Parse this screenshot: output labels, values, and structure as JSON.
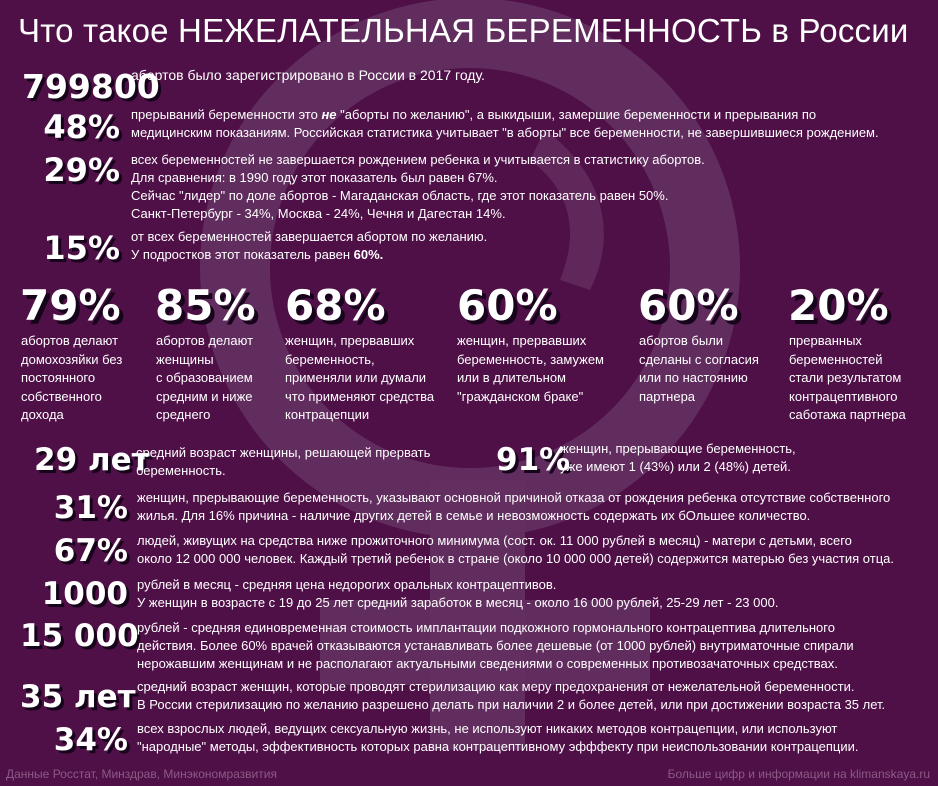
{
  "title": "Что такое НЕЖЕЛАТЕЛЬНАЯ БЕРЕМЕННОСТЬ в России",
  "rows_top": [
    {
      "num": "799800",
      "lines": [
        "абортов было зарегистрировано в России в 2017 году."
      ]
    },
    {
      "num": "48%",
      "line1_a": "прерываний беременности это ",
      "line1_em": "не",
      "line1_b": " \"аборты по желанию\", а выкидыши, замершие беременности и прерывания по",
      "line2": "медицинским показаниям. Российская статистика учитывает \"в аборты\" все беременности, не завершившиеся рождением."
    },
    {
      "num": "29%",
      "lines": [
        "всех беременностей не завершается рождением ребенка и учитывается в статистику абортов.",
        "Для сравнения: в 1990 году этот показатель был равен 67%.",
        "Сейчас \"лидер\" по доле абортов - Магаданская область, где этот показатель равен 50%.",
        "Санкт-Петербург - 34%, Москва - 24%, Чечня и Дагестан 14%."
      ]
    },
    {
      "num": "15%",
      "line1": "от всех беременностей завершается абортом по желанию.",
      "line2_a": "У подростков этот показатель равен ",
      "line2_b": "60%."
    }
  ],
  "columns": [
    {
      "num": "79%",
      "lines": [
        "абортов делают",
        "домохозяйки без",
        "постоянного",
        "собственного",
        "дохода"
      ]
    },
    {
      "num": "85%",
      "lines": [
        "абортов делают",
        "женщины",
        "с образованием",
        "средним и ниже",
        "среднего"
      ]
    },
    {
      "num": "68%",
      "lines": [
        "женщин, прервавших",
        "беременность,",
        "применяли или думали",
        "что применяют средства",
        "контрацепции"
      ]
    },
    {
      "num": "60%",
      "lines": [
        "женщин, прервавших",
        "беременность, замужем",
        "или в длительном",
        "\"гражданском браке\""
      ]
    },
    {
      "num": "60%",
      "lines": [
        "абортов были",
        "сделаны с согласия",
        "или по настоянию",
        "партнера"
      ]
    },
    {
      "num": "20%",
      "lines": [
        "прерванных",
        "беременностей",
        "стали результатом",
        "контрацептивного",
        "саботажа партнера"
      ]
    }
  ],
  "age_row": {
    "num": "29 лет",
    "lines": [
      "средний возраст женщины, решающей прервать",
      "беременность."
    ]
  },
  "kids_row": {
    "num": "91%",
    "lines": [
      "женщин, прерывающие беременность,",
      "уже имеют 1 (43%) или 2 (48%) детей."
    ]
  },
  "rows_bottom": [
    {
      "num": "31%",
      "lines": [
        "женщин, прерывающие беременность, указывают основной причиной отказа от рождения ребенка отсутствие собственного",
        "жилья. Для 16% причина - наличие других детей в семье и невозможность содержать их бОльшее количество."
      ]
    },
    {
      "num": "67%",
      "lines": [
        "людей, живущих на средства ниже прожиточного минимума (сост. ок. 11 000 рублей в месяц) - матери с детьми, всего",
        "около 12 000 000 человек. Каждый третий ребенок в стране (около 10 000 000 детей) содержится матерью без участия отца."
      ]
    },
    {
      "num": "1000",
      "lines": [
        "рублей в месяц - средняя цена недорогих оральных контрацептивов.",
        "У женщин в возрасте с 19 до 25 лет средний заработок в месяц - около 16 000 рублей, 25-29 лет - 23 000."
      ]
    },
    {
      "num": "15 000",
      "lines": [
        "рублей - средняя единовременная стоимость имплантации подкожного гормонального контрацептива длительного",
        "действия. Более 60% врачей отказываются устанавливать более дешевые (от 1000 рублей) внутриматочные спирали",
        "нерожавшим женщинам и не располагают актуальными сведениями о современных противозачаточных средствах."
      ]
    },
    {
      "num": "35 лет",
      "lines": [
        "средний возраст женщин, которые проводят стерилизацию как меру предохранения от нежелательной беременности.",
        "В России стерилизацию по желанию разрешено делать при наличии 2 и более детей, или при достижении возраста 35 лет."
      ]
    },
    {
      "num": "34%",
      "lines": [
        "всех взрослых людей, ведущих сексуальную жизнь, не используют никаких методов контрацепции, или используют",
        "\"народные\" методы, эффективность которых равна контрацептивному эфффекту при неиспользовании контрацепции."
      ]
    }
  ],
  "footer": {
    "left": "Данные Росстат, Минздрав, Минэкономразвития",
    "right": "Больше цифр и информации на klimanskaya.ru"
  },
  "colors": {
    "background": "#4f0f47",
    "shadow": "#16041a",
    "symbol": "#6a3566",
    "footer": "#8c5b86"
  },
  "icons": {
    "background": "female-symbol-icon"
  }
}
